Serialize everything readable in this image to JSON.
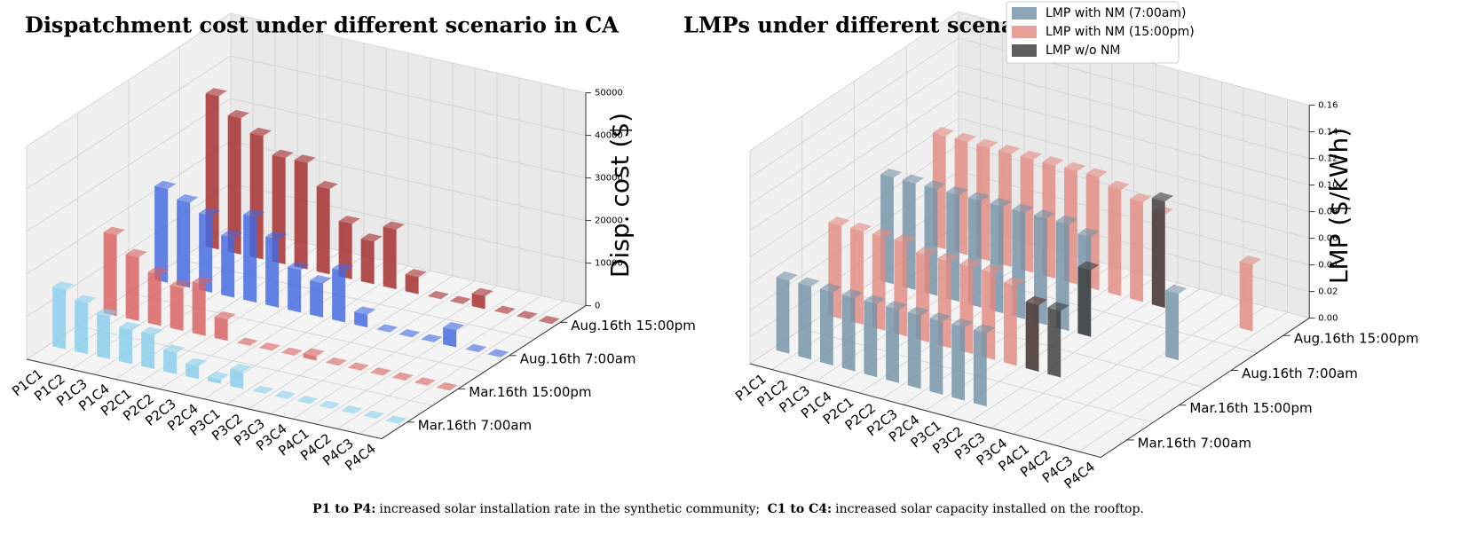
{
  "caption": {
    "label1": "P1 to P4:",
    "text1": "increased solar installation rate in the synthetic community;",
    "label2": "C1 to C4:",
    "text2": "increased solar capacity installed on the rooftop."
  },
  "chart_data": [
    {
      "type": "bar3d",
      "title": "Dispatchment cost under different scenario in CA",
      "zlabel": "Disp. cost ($)",
      "categories": [
        "P1C1",
        "P1C2",
        "P1C3",
        "P1C4",
        "P2C1",
        "P2C2",
        "P2C3",
        "P2C4",
        "P3C1",
        "P3C2",
        "P3C3",
        "P3C4",
        "P4C1",
        "P4C2",
        "P4C3",
        "P4C4"
      ],
      "rows": [
        "Mar.16th 7:00am",
        "Mar.16th 15:00pm",
        "Aug.16th 7:00am",
        "Aug.16th 15:00pm"
      ],
      "zlim": [
        0,
        50000
      ],
      "zticks": [
        0,
        10000,
        20000,
        30000,
        40000,
        50000
      ],
      "grid": true,
      "series": [
        {
          "color": "#87ceeb",
          "values": [
            14000,
            12000,
            10000,
            8000,
            8000,
            5000,
            3000,
            1000,
            4000,
            0,
            0,
            0,
            0,
            0,
            0,
            0
          ]
        },
        {
          "color": "#d9605f",
          "values": [
            19000,
            15000,
            12000,
            10000,
            12000,
            5000,
            0,
            0,
            0,
            1000,
            0,
            0,
            0,
            0,
            0,
            0
          ]
        },
        {
          "color": "#4169e1",
          "values": [
            22000,
            20000,
            18000,
            14000,
            20000,
            16000,
            10000,
            8000,
            12000,
            3000,
            0,
            0,
            0,
            4000,
            0,
            0
          ]
        },
        {
          "color": "#a52a2a",
          "values": [
            36000,
            32000,
            29000,
            25000,
            25000,
            20000,
            13000,
            10000,
            14000,
            4000,
            0,
            0,
            3000,
            0,
            0,
            0
          ]
        }
      ]
    },
    {
      "type": "bar3d",
      "title": "LMPs under different scenario in CA",
      "zlabel": "LMP ($/kWh)",
      "categories": [
        "P1C1",
        "P1C2",
        "P1C3",
        "P1C4",
        "P2C1",
        "P2C2",
        "P2C3",
        "P2C4",
        "P3C1",
        "P3C2",
        "P3C3",
        "P3C4",
        "P4C1",
        "P4C2",
        "P4C3",
        "P4C4"
      ],
      "rows": [
        "Mar.16th 7:00am",
        "Mar.16th 15:00pm",
        "Aug.16th 7:00am",
        "Aug.16th 15:00pm"
      ],
      "zlim": [
        0,
        0.16
      ],
      "zticks": [
        {
          "value": 0,
          "label": "0.00"
        },
        {
          "value": 0.02,
          "label": "0.02"
        },
        {
          "value": 0.04,
          "label": "0.04"
        },
        {
          "value": 0.06,
          "label": "0.06"
        },
        {
          "value": 0.08,
          "label": "0.08"
        },
        {
          "value": 0.1,
          "label": "0.10"
        },
        {
          "value": 0.12,
          "label": "0.12"
        },
        {
          "value": 0.14,
          "label": "0.14"
        },
        {
          "value": 0.16,
          "label": "0.16"
        }
      ],
      "grid": true,
      "legend": "upper right",
      "series": [
        {
          "name": "LMP with NM (7:00am)",
          "color": "#7393a7",
          "values": [
            [
              0.055,
              0.055,
              0.055,
              0.055,
              0.055,
              0.055,
              0.055,
              0.055,
              0.055,
              0.055,
              null,
              null,
              null,
              null,
              null,
              null
            ],
            [
              null,
              null,
              null,
              null,
              null,
              null,
              null,
              null,
              null,
              null,
              null,
              null,
              null,
              null,
              null,
              null
            ],
            [
              0.08,
              0.08,
              0.08,
              0.08,
              0.08,
              0.08,
              0.08,
              0.08,
              0.08,
              0.075,
              null,
              null,
              null,
              0.05,
              null,
              null
            ],
            [
              null,
              null,
              null,
              null,
              null,
              null,
              null,
              null,
              null,
              null,
              null,
              null,
              null,
              null,
              null,
              null
            ]
          ]
        },
        {
          "name": "LMP with NM (15:00pm)",
          "color": "#e28a80",
          "values": [
            [
              null,
              null,
              null,
              null,
              null,
              null,
              null,
              null,
              null,
              null,
              null,
              null,
              null,
              null,
              null,
              null
            ],
            [
              0.07,
              0.07,
              0.07,
              0.07,
              0.065,
              0.065,
              0.065,
              0.065,
              0.06,
              0.05,
              null,
              null,
              null,
              null,
              null,
              null
            ],
            [
              null,
              null,
              null,
              null,
              null,
              null,
              null,
              null,
              null,
              null,
              null,
              null,
              null,
              null,
              null,
              null
            ],
            [
              0.085,
              0.085,
              0.085,
              0.085,
              0.085,
              0.085,
              0.085,
              0.085,
              0.08,
              0.075,
              0.07,
              null,
              null,
              null,
              0.05,
              null
            ]
          ]
        },
        {
          "name": "LMP w/o NM",
          "color": "#3a3a3a",
          "values": [
            [
              null,
              null,
              null,
              null,
              null,
              null,
              null,
              null,
              null,
              null,
              null,
              null,
              null,
              null,
              null,
              null
            ],
            [
              null,
              null,
              null,
              null,
              null,
              null,
              null,
              null,
              null,
              0.05,
              0.05,
              null,
              null,
              null,
              null,
              null
            ],
            [
              null,
              null,
              null,
              null,
              null,
              null,
              null,
              null,
              null,
              0.05,
              null,
              null,
              null,
              null,
              null,
              null
            ],
            [
              null,
              null,
              null,
              null,
              null,
              null,
              null,
              null,
              null,
              null,
              0.08,
              null,
              null,
              null,
              null,
              null
            ]
          ]
        }
      ]
    }
  ]
}
